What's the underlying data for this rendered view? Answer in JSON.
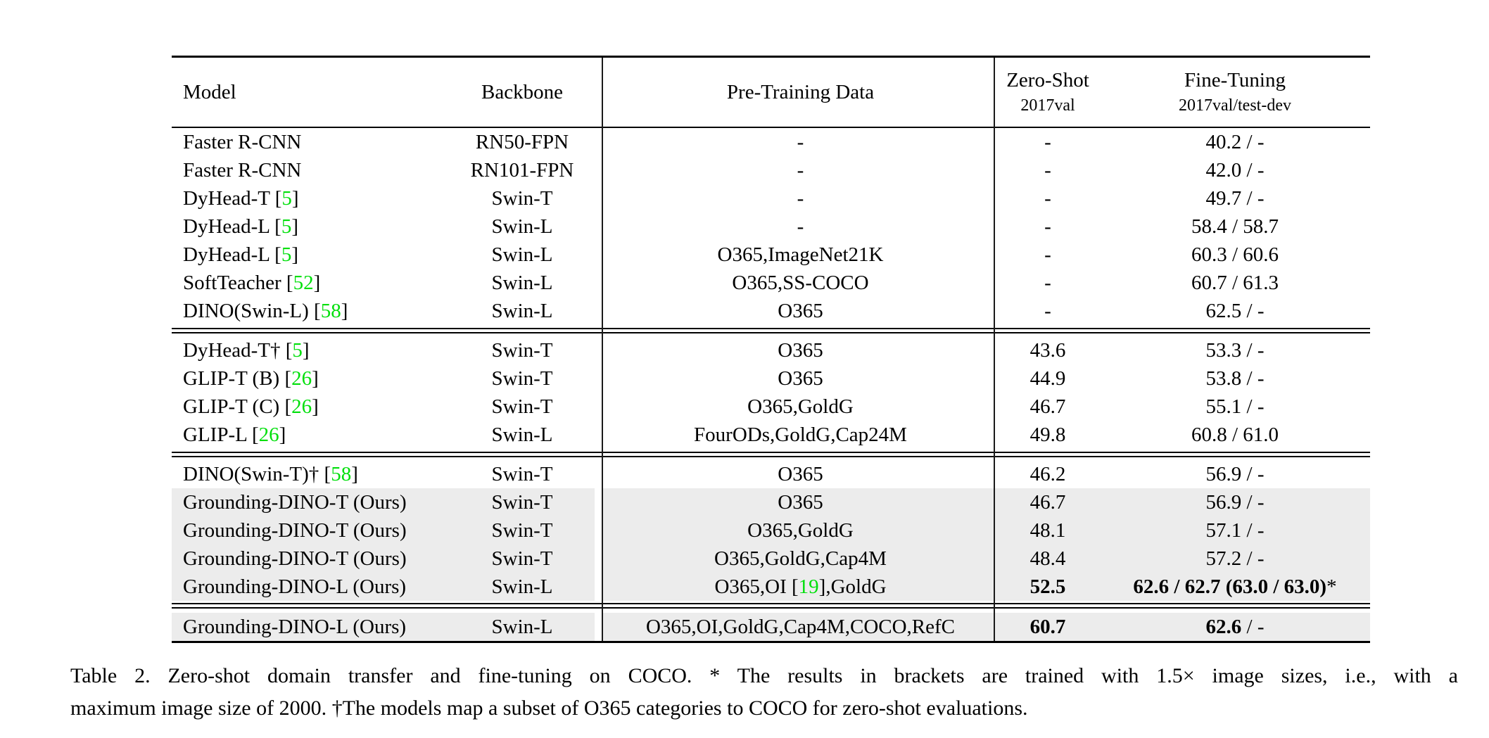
{
  "table": {
    "header": {
      "model": "Model",
      "backbone": "Backbone",
      "pretrain": "Pre-Training Data",
      "zeroshot_title": "Zero-Shot",
      "zeroshot_sub": "2017val",
      "finetune_title": "Fine-Tuning",
      "finetune_sub": "2017val/test-dev"
    },
    "columns": [
      "Model",
      "Backbone",
      "Pre-Training Data",
      "Zero-Shot 2017val",
      "Fine-Tuning 2017val/test-dev"
    ],
    "sections": [
      {
        "rows": [
          {
            "model": "Faster R-CNN",
            "backbone": "RN50-FPN",
            "pretrain": "-",
            "zeroshot": "-",
            "finetune": "40.2 / -"
          },
          {
            "model": "Faster R-CNN",
            "backbone": "RN101-FPN",
            "pretrain": "-",
            "zeroshot": "-",
            "finetune": "42.0 / -"
          },
          {
            "model": "DyHead-T [5]",
            "backbone": "Swin-T",
            "pretrain": "-",
            "zeroshot": "-",
            "finetune": "49.7 / -"
          },
          {
            "model": "DyHead-L [5]",
            "backbone": "Swin-L",
            "pretrain": "-",
            "zeroshot": "-",
            "finetune": "58.4 / 58.7"
          },
          {
            "model": "DyHead-L [5]",
            "backbone": "Swin-L",
            "pretrain": "O365,ImageNet21K",
            "zeroshot": "-",
            "finetune": "60.3 / 60.6"
          },
          {
            "model": "SoftTeacher [52]",
            "backbone": "Swin-L",
            "pretrain": "O365,SS-COCO",
            "zeroshot": "-",
            "finetune": "60.7 / 61.3"
          },
          {
            "model": "DINO(Swin-L) [58]",
            "backbone": "Swin-L",
            "pretrain": "O365",
            "zeroshot": "-",
            "finetune": "62.5 / -"
          }
        ]
      },
      {
        "rows": [
          {
            "model": "DyHead-T† [5]",
            "backbone": "Swin-T",
            "pretrain": "O365",
            "zeroshot": "43.6",
            "finetune": "53.3 / -"
          },
          {
            "model": "GLIP-T (B) [26]",
            "backbone": "Swin-T",
            "pretrain": "O365",
            "zeroshot": "44.9",
            "finetune": "53.8 / -"
          },
          {
            "model": "GLIP-T (C) [26]",
            "backbone": "Swin-T",
            "pretrain": "O365,GoldG",
            "zeroshot": "46.7",
            "finetune": "55.1 / -"
          },
          {
            "model": "GLIP-L [26]",
            "backbone": "Swin-L",
            "pretrain": "FourODs,GoldG,Cap24M",
            "zeroshot": "49.8",
            "finetune": "60.8 / 61.0"
          }
        ]
      },
      {
        "rows": [
          {
            "model": "DINO(Swin-T)† [58]",
            "backbone": "Swin-T",
            "pretrain": "O365",
            "zeroshot": "46.2",
            "finetune": "56.9 / -"
          },
          {
            "model": "Grounding-DINO-T (Ours)",
            "backbone": "Swin-T",
            "pretrain": "O365",
            "zeroshot": "46.7",
            "finetune": "56.9 / -",
            "highlight": true
          },
          {
            "model": "Grounding-DINO-T (Ours)",
            "backbone": "Swin-T",
            "pretrain": "O365,GoldG",
            "zeroshot": "48.1",
            "finetune": "57.1 / -",
            "highlight": true
          },
          {
            "model": "Grounding-DINO-T (Ours)",
            "backbone": "Swin-T",
            "pretrain": "O365,GoldG,Cap4M",
            "zeroshot": "48.4",
            "finetune": "57.2 / -",
            "highlight": true
          },
          {
            "model": "Grounding-DINO-L (Ours)",
            "backbone": "Swin-L",
            "pretrain": "O365,OI [19],GoldG",
            "zeroshot": "52.5",
            "finetune": "62.6 / 62.7 (63.0 / 63.0)*",
            "highlight": true,
            "bold_zeroshot": true,
            "bold_finetune": true
          }
        ]
      },
      {
        "rows": [
          {
            "model": "Grounding-DINO-L (Ours)",
            "backbone": "Swin-L",
            "pretrain": "O365,OI,GoldG,Cap4M,COCO,RefC",
            "zeroshot": "60.7",
            "finetune": "62.6 / -",
            "highlight": true,
            "bold_zeroshot": true,
            "bold_finetune": true
          }
        ]
      }
    ]
  },
  "caption": {
    "line1": "Table 2.  Zero-shot domain transfer and fine-tuning on COCO. * The results in brackets are trained with 1.5× image sizes, i.e., with a",
    "line2": "maximum image size of 2000. †The models map a subset of O365 categories to COCO for zero-shot evaluations."
  },
  "colors": {
    "citation_green": "#00DF0B",
    "row_highlight": "#ececec",
    "rule_black": "#000000"
  }
}
